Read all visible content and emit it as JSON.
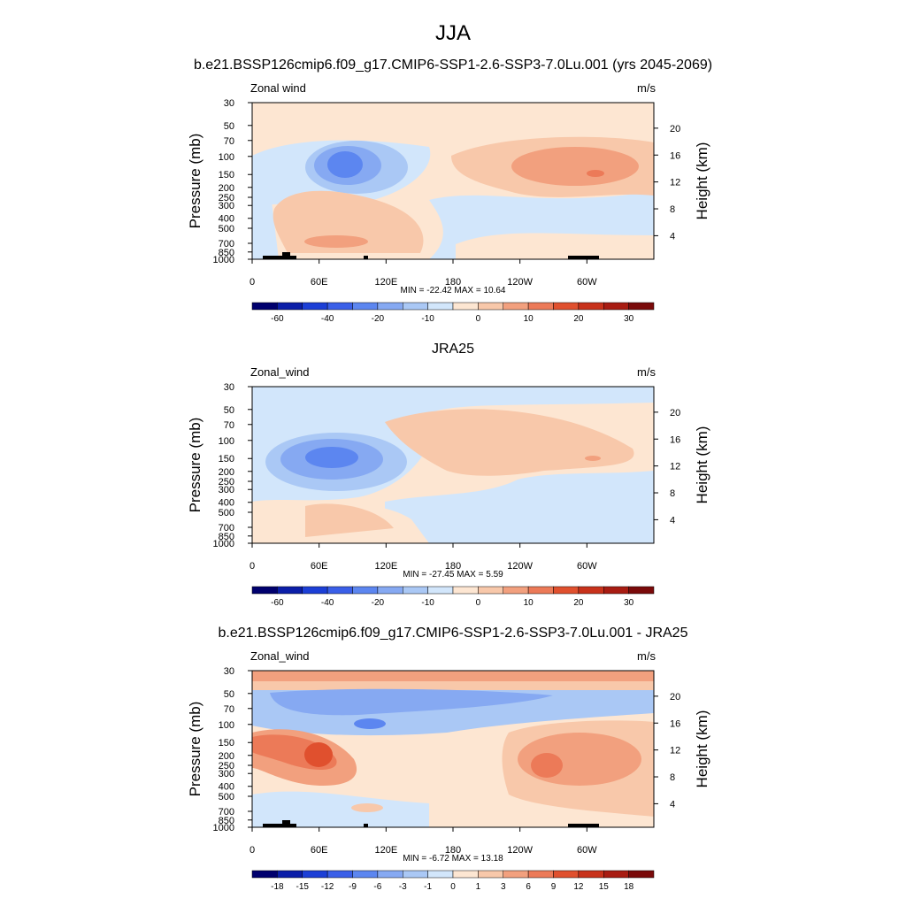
{
  "figure_title": "JJA",
  "chart_data": [
    {
      "type": "contour",
      "title": "b.e21.BSSP126cmip6.f09_g17.CMIP6-SSP1-2.6-SSP3-7.0Lu.001 (yrs 2045-2069)",
      "left_label": "Zonal wind",
      "units": "m/s",
      "ylabel": "Pressure (mb)",
      "y2label": "Height (km)",
      "log_y": true,
      "ylim": [
        1000,
        30
      ],
      "yticks": [
        30,
        50,
        70,
        100,
        150,
        200,
        250,
        300,
        400,
        500,
        700,
        850,
        1000
      ],
      "y2lim": [
        0.5,
        23.8
      ],
      "y2ticks": [
        4,
        8,
        12,
        16,
        20
      ],
      "xlim": [
        0,
        360
      ],
      "xticks": [
        0,
        {
          "value": 60,
          "label": "60E"
        },
        {
          "value": 120,
          "label": "120E"
        },
        180,
        {
          "value": 240,
          "label": "120W"
        },
        {
          "value": 300,
          "label": "60W"
        }
      ],
      "stats_label": "MIN = -22.42  MAX =  10.64",
      "colorbar": {
        "levels": [
          -60,
          null,
          -40,
          null,
          -20,
          null,
          -10,
          null,
          0,
          null,
          10,
          null,
          20,
          null,
          30
        ],
        "colors": [
          "#00006e",
          "#0b1ea8",
          "#1c3fd6",
          "#3a5fe8",
          "#5c86f0",
          "#86a9f2",
          "#aac8f5",
          "#d2e6fb",
          "#fde6d2",
          "#f8c8aa",
          "#f2a07e",
          "#ec7a58",
          "#e0502e",
          "#c8321b",
          "#a81c12",
          "#7a0a0a"
        ]
      }
    },
    {
      "type": "contour",
      "title": "JRA25",
      "left_label": "Zonal_wind",
      "units": "m/s",
      "ylabel": "Pressure (mb)",
      "y2label": "Height (km)",
      "log_y": true,
      "ylim": [
        1000,
        30
      ],
      "yticks": [
        30,
        50,
        70,
        100,
        150,
        200,
        250,
        300,
        400,
        500,
        700,
        850,
        1000
      ],
      "y2lim": [
        0.5,
        23.8
      ],
      "y2ticks": [
        4,
        8,
        12,
        16,
        20
      ],
      "xlim": [
        0,
        360
      ],
      "xticks": [
        0,
        {
          "value": 60,
          "label": "60E"
        },
        {
          "value": 120,
          "label": "120E"
        },
        180,
        {
          "value": 240,
          "label": "120W"
        },
        {
          "value": 300,
          "label": "60W"
        }
      ],
      "stats_label": "MIN = -27.45  MAX =   5.59",
      "colorbar": {
        "levels": [
          -60,
          null,
          -40,
          null,
          -20,
          null,
          -10,
          null,
          0,
          null,
          10,
          null,
          20,
          null,
          30
        ],
        "colors": [
          "#00006e",
          "#0b1ea8",
          "#1c3fd6",
          "#3a5fe8",
          "#5c86f0",
          "#86a9f2",
          "#aac8f5",
          "#d2e6fb",
          "#fde6d2",
          "#f8c8aa",
          "#f2a07e",
          "#ec7a58",
          "#e0502e",
          "#c8321b",
          "#a81c12",
          "#7a0a0a"
        ]
      }
    },
    {
      "type": "contour",
      "title": "b.e21.BSSP126cmip6.f09_g17.CMIP6-SSP1-2.6-SSP3-7.0Lu.001 - JRA25",
      "left_label": "Zonal_wind",
      "units": "m/s",
      "ylabel": "Pressure (mb)",
      "y2label": "Height (km)",
      "log_y": true,
      "ylim": [
        1000,
        30
      ],
      "yticks": [
        30,
        50,
        70,
        100,
        150,
        200,
        250,
        300,
        400,
        500,
        700,
        850,
        1000
      ],
      "y2lim": [
        0.5,
        23.8
      ],
      "y2ticks": [
        4,
        8,
        12,
        16,
        20
      ],
      "xlim": [
        0,
        360
      ],
      "xticks": [
        0,
        {
          "value": 60,
          "label": "60E"
        },
        {
          "value": 120,
          "label": "120E"
        },
        180,
        {
          "value": 240,
          "label": "120W"
        },
        {
          "value": 300,
          "label": "60W"
        }
      ],
      "stats_label": "MIN = -6.72  MAX = 13.18",
      "colorbar": {
        "levels": [
          -18,
          -15,
          -12,
          -9,
          -6,
          -3,
          -1,
          0,
          1,
          3,
          6,
          9,
          12,
          15,
          18
        ],
        "colors": [
          "#00006e",
          "#0b1ea8",
          "#1c3fd6",
          "#3a5fe8",
          "#5c86f0",
          "#86a9f2",
          "#aac8f5",
          "#d2e6fb",
          "#fde6d2",
          "#f8c8aa",
          "#f2a07e",
          "#ec7a58",
          "#e0502e",
          "#c8321b",
          "#a81c12",
          "#7a0a0a"
        ]
      }
    }
  ]
}
